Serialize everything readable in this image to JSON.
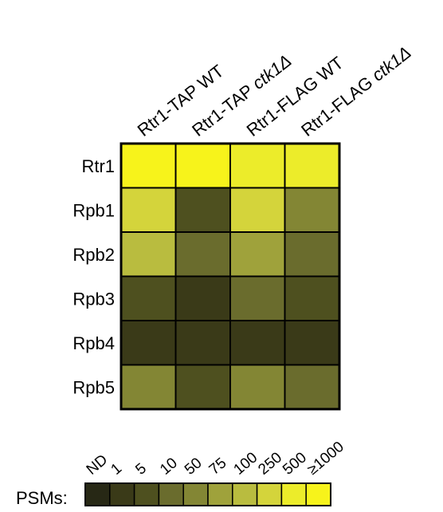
{
  "chart_data": {
    "type": "heatmap",
    "columns": [
      {
        "prefix": "Rtr1-TAP ",
        "suffix": "WT",
        "suffix_italic": false
      },
      {
        "prefix": "Rtr1-TAP ",
        "suffix": "ctk1Δ",
        "suffix_italic": true
      },
      {
        "prefix": "Rtr1-FLAG ",
        "suffix": "WT",
        "suffix_italic": false
      },
      {
        "prefix": "Rtr1-FLAG ",
        "suffix": "ctk1Δ",
        "suffix_italic": true
      }
    ],
    "rows": [
      "Rtr1",
      "Rpb1",
      "Rpb2",
      "Rpb3",
      "Rpb4",
      "Rpb5"
    ],
    "values": [
      [
        9,
        9,
        8,
        8
      ],
      [
        7,
        2,
        7,
        4
      ],
      [
        6,
        3,
        5,
        3
      ],
      [
        2,
        1,
        3,
        2
      ],
      [
        1,
        1,
        1,
        1
      ],
      [
        4,
        2,
        4,
        3
      ]
    ],
    "legend": {
      "label": "PSMs:",
      "bins": [
        "ND",
        "1",
        "5",
        "10",
        "50",
        "75",
        "100",
        "250",
        "500",
        "≥1000"
      ],
      "colors": [
        "#272815",
        "#3a3a18",
        "#4e501f",
        "#6a6c2d",
        "#838634",
        "#9fa23b",
        "#b9bc3f",
        "#d4d43b",
        "#ecec2a",
        "#f7f31b"
      ]
    }
  }
}
